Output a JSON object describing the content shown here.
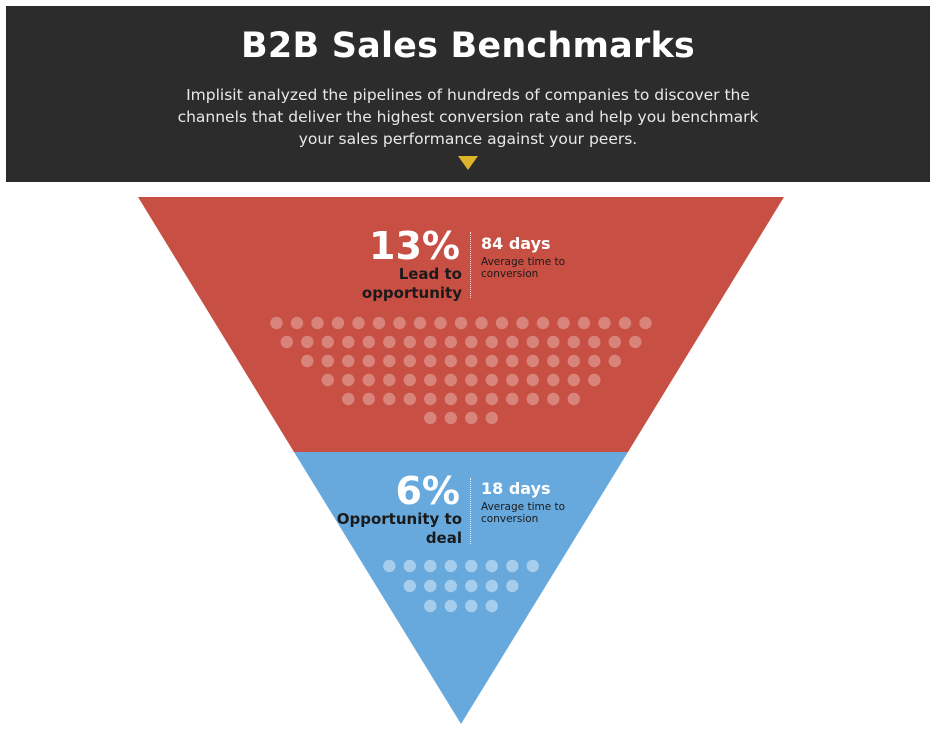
{
  "header": {
    "title": "B2B Sales Benchmarks",
    "subtitle": "Implisit analyzed the pipelines of hundreds of companies to discover the channels that deliver the highest conversion rate and help you benchmark your sales performance against your peers."
  },
  "colors": {
    "header_bg": "#2c2c2c",
    "accent_arrow": "#e0b32c",
    "stage1_fill": "#c84f43",
    "stage2_fill": "#67a9dc"
  },
  "stages": [
    {
      "percent": "13%",
      "label": "Lead to opportunity",
      "days": "84 days",
      "caption": "Average time to conversion",
      "dot_rows": [
        19,
        18,
        16,
        14,
        12,
        4
      ]
    },
    {
      "percent": "6%",
      "label": "Opportunity to deal",
      "days": "18 days",
      "caption": "Average time to conversion",
      "dot_rows": [
        8,
        6,
        4
      ]
    }
  ]
}
